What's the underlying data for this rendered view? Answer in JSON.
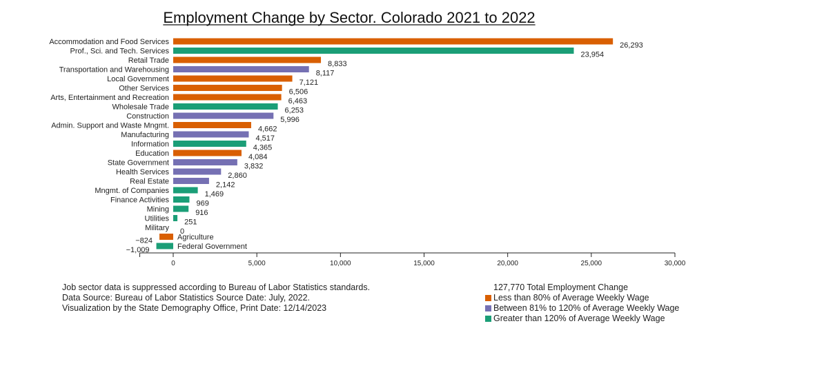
{
  "chart_data": {
    "type": "bar",
    "orientation": "horizontal",
    "title": "Employment Change by Sector. Colorado 2021 to 2022",
    "xlabel": "",
    "ylabel": "",
    "xlim": [
      -2000,
      30000
    ],
    "x_ticks": [
      0,
      5000,
      10000,
      15000,
      20000,
      25000,
      30000
    ],
    "x_tick_labels": [
      "0",
      "5,000",
      "10,000",
      "15,000",
      "20,000",
      "25,000",
      "30,000"
    ],
    "categories": [
      "Accommodation and Food Services",
      "Prof., Sci. and Tech. Services",
      "Retail Trade",
      "Transportation and Warehousing",
      "Local Government",
      "Other Services",
      "Arts, Entertainment and Recreation",
      "Wholesale Trade",
      "Construction",
      "Admin. Support and Waste Mngmt.",
      "Manufacturing",
      "Information",
      "Education",
      "State Government",
      "Health Services",
      "Real Estate",
      "Mngmt. of Companies",
      "Finance Activities",
      "Mining",
      "Utilities",
      "Military",
      "Agriculture",
      "Federal Government"
    ],
    "values": [
      26293,
      23954,
      8833,
      8117,
      7121,
      6506,
      6463,
      6253,
      5996,
      4662,
      4517,
      4365,
      4084,
      3832,
      2860,
      2142,
      1469,
      969,
      916,
      251,
      0,
      -824,
      -1009
    ],
    "value_labels": [
      "26,293",
      "23,954",
      "8,833",
      "8,117",
      "7,121",
      "6,506",
      "6,463",
      "6,253",
      "5,996",
      "4,662",
      "4,517",
      "4,365",
      "4,084",
      "3,832",
      "2,860",
      "2,142",
      "1,469",
      "969",
      "916",
      "251",
      "0",
      "−824",
      "−1,009"
    ],
    "wage_groups": [
      "low",
      "high",
      "low",
      "mid",
      "low",
      "low",
      "low",
      "high",
      "mid",
      "low",
      "mid",
      "high",
      "low",
      "mid",
      "mid",
      "mid",
      "high",
      "high",
      "high",
      "high",
      "mid",
      "low",
      "high"
    ],
    "group_colors": {
      "low": "#d95f02",
      "mid": "#7570b3",
      "high": "#1b9e77"
    },
    "legend": {
      "total": "127,770 Total Employment Change",
      "items": [
        {
          "key": "low",
          "label": "Less than 80% of Average Weekly Wage"
        },
        {
          "key": "mid",
          "label": "Between 81% to 120% of Average Weekly Wage"
        },
        {
          "key": "high",
          "label": "Greater than 120% of Average Weekly Wage"
        }
      ]
    }
  },
  "notes": {
    "line1": "Job sector data is suppressed according to Bureau of Labor Statistics standards.",
    "line2": "Data Source: Bureau of Labor Statistics Source Date: July, 2022.",
    "line3": "Visualization by the State Demography Office, Print Date: 12/14/2023"
  }
}
